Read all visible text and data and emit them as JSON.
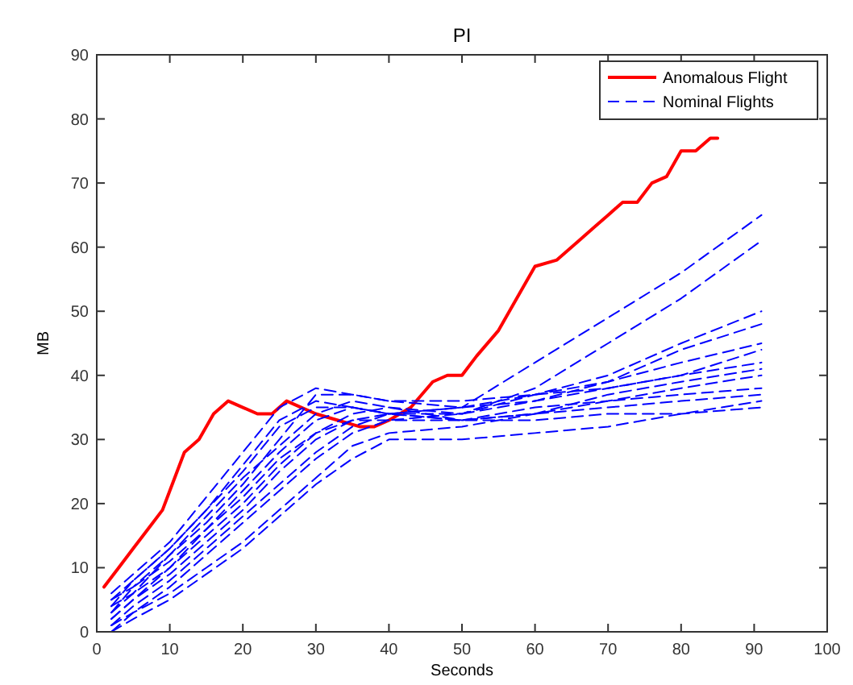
{
  "chart_data": {
    "type": "line",
    "title": "PI",
    "xlabel": "Seconds",
    "ylabel": "MB",
    "xlim": [
      0,
      100
    ],
    "ylim": [
      0,
      90
    ],
    "xticks": [
      0,
      10,
      20,
      30,
      40,
      50,
      60,
      70,
      80,
      90,
      100
    ],
    "yticks": [
      0,
      10,
      20,
      30,
      40,
      50,
      60,
      70,
      80,
      90
    ],
    "grid": false,
    "legend": "top right",
    "marker": "none",
    "x": [
      2,
      5,
      10,
      15,
      20,
      25,
      30,
      35,
      40,
      50,
      60,
      70,
      80,
      91
    ],
    "series": [
      {
        "name": "Anomalous Flight",
        "color": "#ff0000",
        "line_style": "solid",
        "x": [
          1,
          3,
          5,
          7,
          9,
          10,
          12,
          14,
          16,
          18,
          20,
          22,
          24,
          26,
          28,
          30,
          33,
          36,
          38,
          40,
          43,
          46,
          48,
          50,
          52,
          55,
          58,
          60,
          63,
          66,
          68,
          70,
          72,
          74,
          76,
          78,
          80,
          82,
          84,
          85
        ],
        "values": [
          7,
          10,
          13,
          16,
          19,
          22,
          28,
          30,
          34,
          36,
          35,
          34,
          34,
          36,
          35,
          34,
          33,
          32,
          32,
          33,
          35,
          39,
          40,
          40,
          43,
          47,
          53,
          57,
          58,
          61,
          63,
          65,
          67,
          67,
          70,
          71,
          75,
          75,
          77,
          77
        ]
      },
      {
        "name": "Nominal Flights",
        "color": "#0000ff",
        "line_style": "dashed",
        "values": [
          5,
          8,
          13,
          19,
          25,
          32,
          35,
          35,
          34,
          35,
          42,
          49,
          56,
          65
        ]
      },
      {
        "color": "#0000ff",
        "line_style": "dashed",
        "values": [
          3,
          7,
          11,
          16,
          22,
          28,
          33,
          35,
          34,
          34,
          38,
          45,
          52,
          61
        ]
      },
      {
        "color": "#0000ff",
        "line_style": "dashed",
        "values": [
          2,
          5,
          10,
          15,
          20,
          26,
          31,
          34,
          35,
          34,
          37,
          40,
          45,
          50
        ]
      },
      {
        "color": "#0000ff",
        "line_style": "dashed",
        "values": [
          4,
          6,
          12,
          17,
          23,
          30,
          37,
          37,
          36,
          35,
          36,
          39,
          44,
          48
        ]
      },
      {
        "color": "#0000ff",
        "line_style": "dashed",
        "values": [
          1,
          4,
          8,
          13,
          18,
          23,
          28,
          32,
          34,
          35,
          37,
          39,
          42,
          45
        ]
      },
      {
        "color": "#0000ff",
        "line_style": "dashed",
        "values": [
          6,
          9,
          14,
          21,
          28,
          35,
          38,
          37,
          36,
          36,
          37,
          38,
          40,
          44
        ]
      },
      {
        "color": "#0000ff",
        "line_style": "dashed",
        "values": [
          0,
          3,
          7,
          12,
          17,
          22,
          27,
          31,
          33,
          34,
          36,
          38,
          40,
          42
        ]
      },
      {
        "color": "#0000ff",
        "line_style": "dashed",
        "values": [
          2,
          5,
          9,
          14,
          19,
          25,
          30,
          33,
          34,
          33,
          34,
          37,
          39,
          41
        ]
      },
      {
        "color": "#0000ff",
        "line_style": "dashed",
        "values": [
          5,
          7,
          12,
          18,
          24,
          29,
          34,
          36,
          35,
          33,
          35,
          36,
          38,
          40
        ]
      },
      {
        "color": "#0000ff",
        "line_style": "dashed",
        "values": [
          1,
          3,
          6,
          10,
          14,
          19,
          24,
          29,
          31,
          32,
          34,
          36,
          37,
          38
        ]
      },
      {
        "color": "#0000ff",
        "line_style": "dashed",
        "values": [
          3,
          6,
          10,
          16,
          21,
          27,
          31,
          33,
          33,
          33,
          34,
          35,
          36,
          37
        ]
      },
      {
        "color": "#0000ff",
        "line_style": "dashed",
        "values": [
          0,
          2,
          5,
          9,
          13,
          18,
          23,
          27,
          30,
          30,
          31,
          32,
          34,
          36
        ]
      },
      {
        "color": "#0000ff",
        "line_style": "dashed",
        "values": [
          4,
          8,
          13,
          19,
          26,
          33,
          36,
          35,
          34,
          33,
          33,
          34,
          34,
          35
        ]
      }
    ]
  }
}
